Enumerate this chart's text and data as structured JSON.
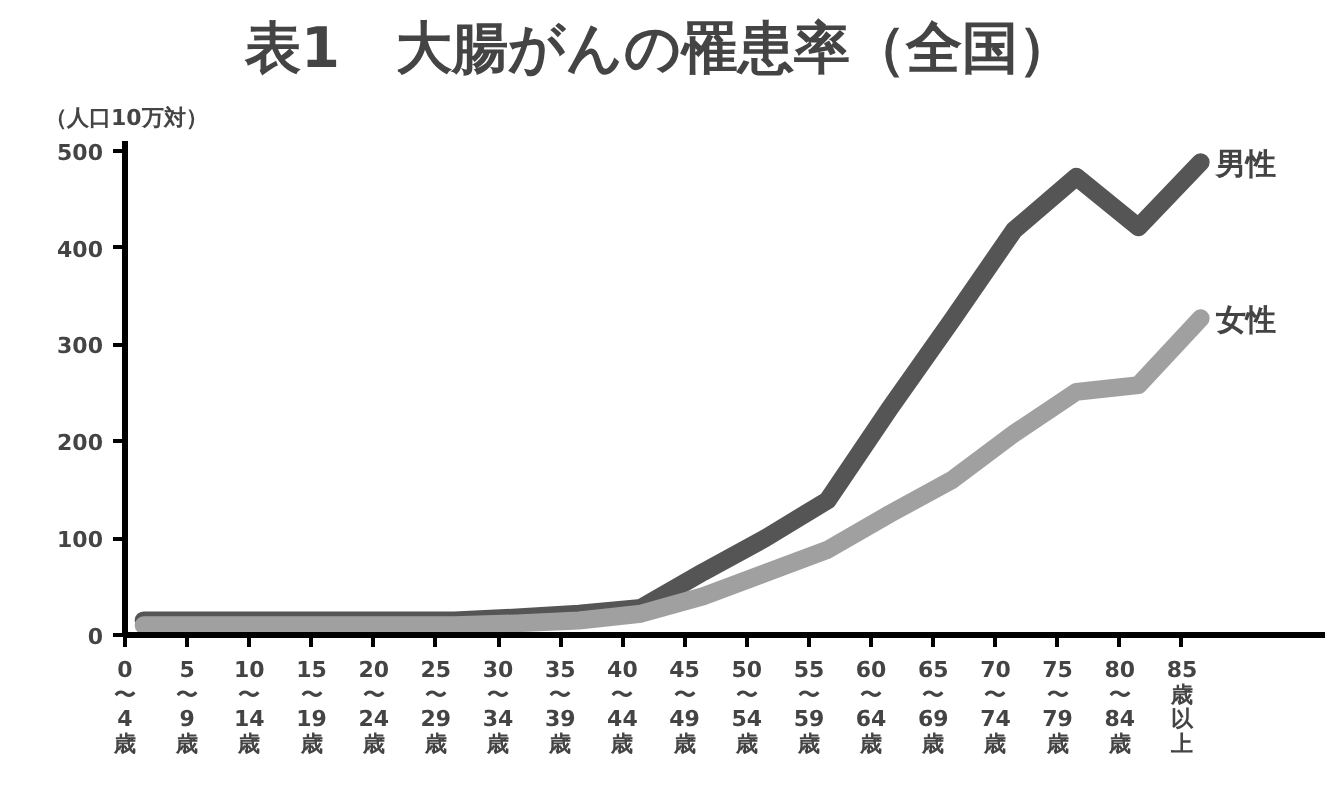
{
  "chart_data": {
    "type": "line",
    "title": "表1　大腸がんの罹患率（全国）",
    "ylabel": "（人口10万対）",
    "categories": [
      "0〜4歳",
      "5〜9歳",
      "10〜14歳",
      "15〜19歳",
      "20〜24歳",
      "25〜29歳",
      "30〜34歳",
      "35〜39歳",
      "40〜44歳",
      "45〜49歳",
      "50〜54歳",
      "55〜59歳",
      "60〜64歳",
      "65〜69歳",
      "70〜74歳",
      "75〜79歳",
      "80〜84歳",
      "85歳以上"
    ],
    "series": [
      {
        "name": "男性",
        "color": "#555555",
        "values": [
          15,
          15,
          15,
          15,
          15,
          15,
          18,
          22,
          28,
          65,
          100,
          139,
          234,
          325,
          418,
          473,
          421,
          488
        ]
      },
      {
        "name": "女性",
        "color": "#a0a0a0",
        "values": [
          10,
          10,
          10,
          10,
          10,
          10,
          12,
          15,
          22,
          40,
          64,
          88,
          125,
          160,
          208,
          251,
          258,
          327
        ]
      }
    ],
    "ylim": [
      0,
      510
    ],
    "yticks": [
      0,
      100,
      200,
      300,
      400,
      500
    ],
    "grid": false,
    "line_style": "solid",
    "marker": "none"
  }
}
